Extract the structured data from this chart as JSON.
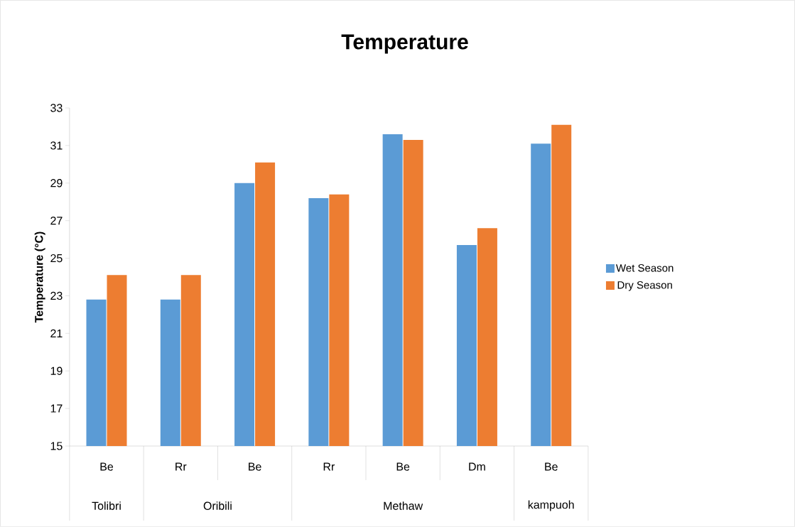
{
  "chart_data": {
    "type": "bar",
    "title": "Temperature",
    "ylabel": "Temperature (°C)",
    "categories": [
      "Be",
      "Rr",
      "Be",
      "Rr",
      "Be",
      "Dm",
      "Be"
    ],
    "series": [
      {
        "name": "Wet Season",
        "color": "#5b9bd5",
        "values": [
          22.8,
          22.8,
          29.0,
          28.2,
          31.6,
          25.7,
          31.1
        ]
      },
      {
        "name": "Dry Season",
        "color": "#ed7d31",
        "values": [
          24.1,
          24.1,
          30.1,
          28.4,
          31.3,
          26.6,
          32.1
        ]
      }
    ],
    "ylim": [
      15,
      33
    ],
    "yticks": [
      15,
      17,
      19,
      21,
      23,
      25,
      27,
      29,
      31,
      33
    ],
    "legend": "right",
    "annotations": [
      "Tolibri",
      "Oribili",
      "Methaw",
      "kampuoh"
    ]
  }
}
